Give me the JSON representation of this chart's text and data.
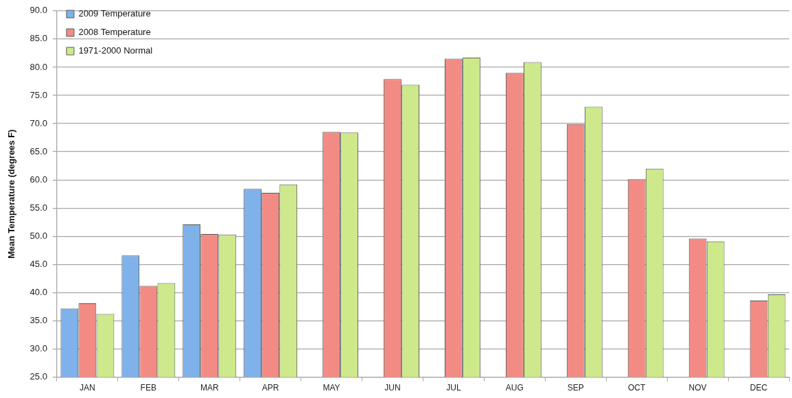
{
  "chart_data": {
    "type": "bar",
    "ylabel": "Mean Temperature (degrees F)",
    "categories": [
      "JAN",
      "FEB",
      "MAR",
      "APR",
      "MAY",
      "JUN",
      "JUL",
      "AUG",
      "SEP",
      "OCT",
      "NOV",
      "DEC"
    ],
    "series": [
      {
        "name": "2009 Temperature",
        "color": "#7fb1ea",
        "values": [
          37.2,
          46.6,
          52.1,
          58.4,
          null,
          null,
          null,
          null,
          null,
          null,
          null,
          null
        ]
      },
      {
        "name": "2008 Temperature",
        "color": "#f28b84",
        "values": [
          38.1,
          41.2,
          50.4,
          57.7,
          68.5,
          77.9,
          81.5,
          79.0,
          69.9,
          60.1,
          49.6,
          38.6
        ]
      },
      {
        "name": "1971-2000 Normal",
        "color": "#cde98c",
        "values": [
          36.2,
          41.7,
          50.3,
          59.2,
          68.4,
          76.9,
          81.7,
          80.9,
          73.0,
          62.0,
          49.1,
          39.7
        ]
      }
    ],
    "ylim": [
      25,
      90
    ],
    "yticks": [
      {
        "value": 25,
        "label": "25.0"
      },
      {
        "value": 30,
        "label": "30.0"
      },
      {
        "value": 35,
        "label": "35.0"
      },
      {
        "value": 40,
        "label": "40.0"
      },
      {
        "value": 45,
        "label": "45.0"
      },
      {
        "value": 50,
        "label": "50.0"
      },
      {
        "value": 55,
        "label": "55.0"
      },
      {
        "value": 60,
        "label": "60.0"
      },
      {
        "value": 65,
        "label": "65.0"
      },
      {
        "value": 70,
        "label": "70.0"
      },
      {
        "value": 75,
        "label": "75.0"
      },
      {
        "value": 80,
        "label": "80.0"
      },
      {
        "value": 85,
        "label": "85.0"
      },
      {
        "value": 90,
        "label": "90.0"
      }
    ],
    "grid": "y",
    "legend": "top left"
  }
}
